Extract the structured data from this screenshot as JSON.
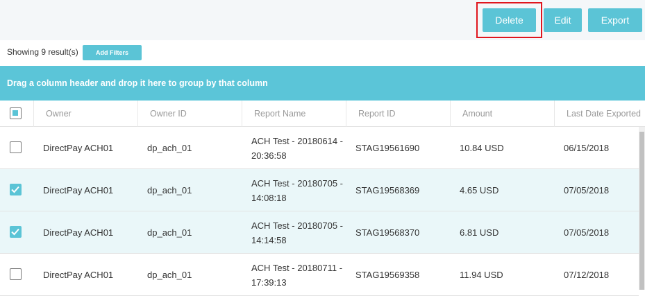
{
  "toolbar": {
    "buttons": [
      "Delete",
      "Edit",
      "Export"
    ],
    "highlighted": 0
  },
  "results": {
    "text": "Showing 9 result(s)",
    "add_filters": "Add Filters"
  },
  "group_bar": "Drag a column header and drop it here to group by that column",
  "table": {
    "header_checked": true,
    "columns": [
      "Owner",
      "Owner ID",
      "Report Name",
      "Report ID",
      "Amount",
      "Last Date Exported"
    ],
    "rows": [
      {
        "checked": false,
        "cells": [
          "DirectPay ACH01",
          "dp_ach_01",
          "ACH Test - 20180614 - 20:36:58",
          "STAG19561690",
          "10.84 USD",
          "06/15/2018"
        ]
      },
      {
        "checked": true,
        "cells": [
          "DirectPay ACH01",
          "dp_ach_01",
          "ACH Test - 20180705 - 14:08:18",
          "STAG19568369",
          "4.65 USD",
          "07/05/2018"
        ]
      },
      {
        "checked": true,
        "cells": [
          "DirectPay ACH01",
          "dp_ach_01",
          "ACH Test - 20180705 - 14:14:58",
          "STAG19568370",
          "6.81 USD",
          "07/05/2018"
        ]
      },
      {
        "checked": false,
        "cells": [
          "DirectPay ACH01",
          "dp_ach_01",
          "ACH Test - 20180711 - 17:39:13",
          "STAG19569358",
          "11.94 USD",
          "07/12/2018"
        ]
      }
    ]
  }
}
